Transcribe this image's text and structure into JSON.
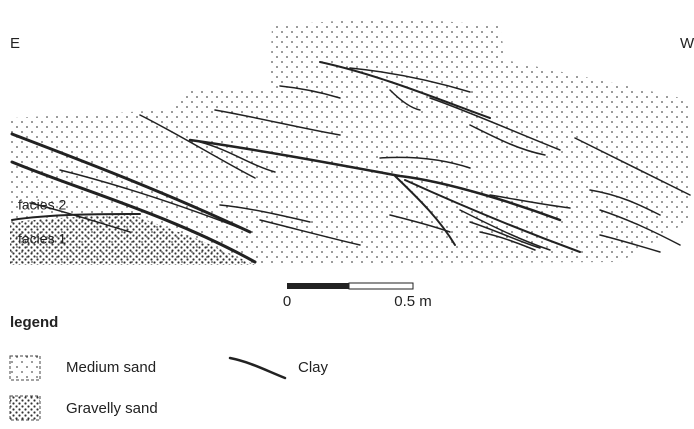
{
  "section": {
    "east": "E",
    "west": "W",
    "facies_upper": "facies 2",
    "facies_lower": "facies 1"
  },
  "scale_bar": {
    "start": "0",
    "end": "0.5 m"
  },
  "legend": {
    "title": "legend",
    "items": [
      "Medium sand",
      "Gravelly sand",
      "Clay"
    ]
  }
}
